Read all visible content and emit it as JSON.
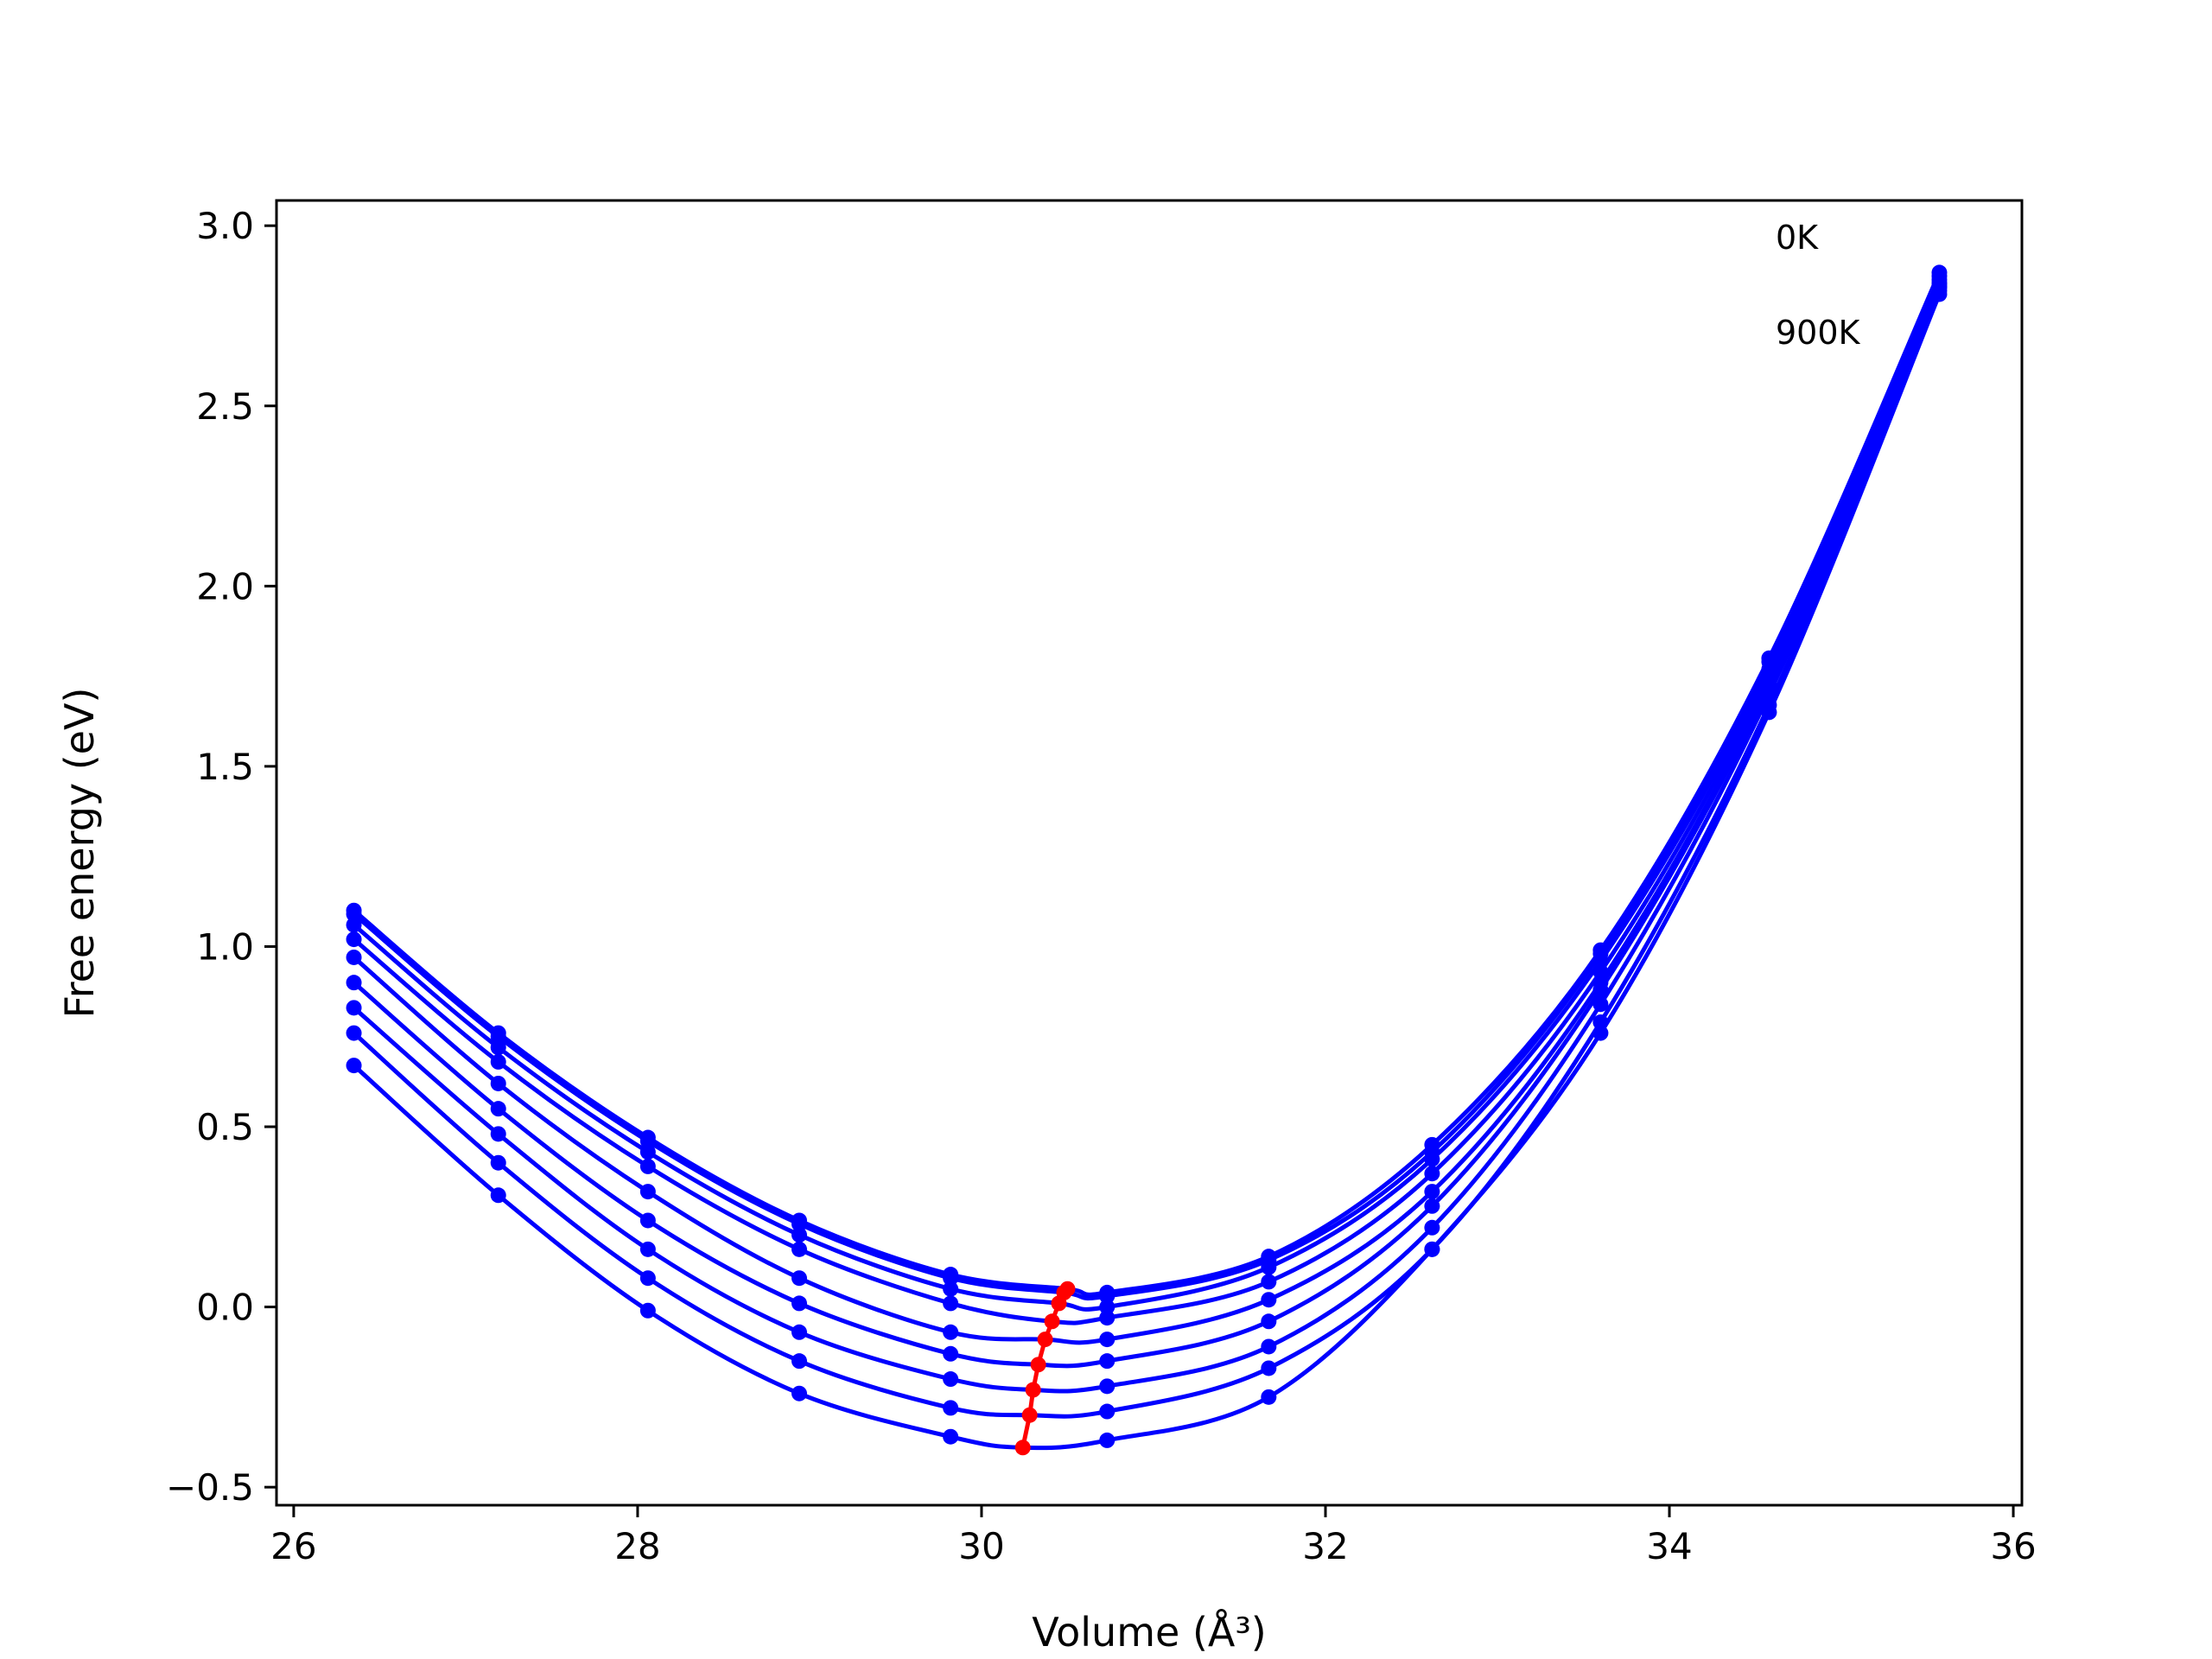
{
  "chart_data": {
    "type": "line",
    "title": "",
    "xlabel": "Volume (Å³)",
    "ylabel": "Free energy (eV)",
    "xlim": [
      25.9,
      36.05
    ],
    "ylim": [
      -0.55,
      3.07
    ],
    "xticks": [
      26,
      28,
      30,
      32,
      34,
      36
    ],
    "yticks": [
      -0.5,
      0.0,
      0.5,
      1.0,
      1.5,
      2.0,
      2.5,
      3.0
    ],
    "xtick_labels": [
      "26",
      "28",
      "30",
      "32",
      "34",
      "36"
    ],
    "ytick_labels": [
      "−0.5",
      "0.0",
      "0.5",
      "1.0",
      "1.5",
      "2.0",
      "2.5",
      "3.0"
    ],
    "grid": false,
    "annotations": [
      "0K",
      "900K"
    ],
    "colors": {
      "curves": "#0000ff",
      "minima": "#ff0000"
    },
    "volumes": [
      26.35,
      27.19,
      28.06,
      28.94,
      29.82,
      30.73,
      31.67,
      32.62,
      33.6,
      34.58,
      35.57
    ],
    "series": [
      {
        "values": [
          1.1,
          0.76,
          0.47,
          0.24,
          0.09,
          0.04,
          0.14,
          0.45,
          0.99,
          1.8,
          2.87
        ],
        "min": [
          30.5,
          0.05
        ]
      },
      {
        "values": [
          1.09,
          0.75,
          0.46,
          0.23,
          0.08,
          0.03,
          0.13,
          0.43,
          0.98,
          1.79,
          2.86
        ],
        "min": [
          30.48,
          0.04
        ]
      },
      {
        "values": [
          1.06,
          0.72,
          0.43,
          0.2,
          0.05,
          0.0,
          0.11,
          0.41,
          0.96,
          1.77,
          2.85
        ],
        "min": [
          30.45,
          0.01
        ]
      },
      {
        "values": [
          1.02,
          0.68,
          0.39,
          0.16,
          0.01,
          -0.03,
          0.07,
          0.37,
          0.93,
          1.75,
          2.84
        ],
        "min": [
          30.41,
          -0.04
        ]
      },
      {
        "values": [
          0.97,
          0.62,
          0.32,
          0.08,
          -0.07,
          -0.09,
          0.02,
          0.32,
          0.9,
          1.73,
          2.84
        ],
        "min": [
          30.37,
          -0.09
        ]
      },
      {
        "values": [
          0.9,
          0.55,
          0.24,
          0.01,
          -0.13,
          -0.15,
          -0.04,
          0.28,
          0.88,
          1.72,
          2.83
        ],
        "min": [
          30.33,
          -0.16
        ]
      },
      {
        "values": [
          0.83,
          0.48,
          0.16,
          -0.07,
          -0.2,
          -0.22,
          -0.11,
          0.22,
          0.84,
          1.7,
          2.83
        ],
        "min": [
          30.3,
          -0.23
        ]
      },
      {
        "values": [
          0.76,
          0.4,
          0.08,
          -0.15,
          -0.28,
          -0.29,
          -0.17,
          0.16,
          0.79,
          1.67,
          2.82
        ],
        "min": [
          30.28,
          -0.3
        ]
      },
      {
        "values": [
          0.67,
          0.31,
          -0.01,
          -0.24,
          -0.36,
          -0.37,
          -0.25,
          0.16,
          0.76,
          1.65,
          2.81
        ],
        "min": [
          30.24,
          -0.39
        ]
      }
    ]
  }
}
